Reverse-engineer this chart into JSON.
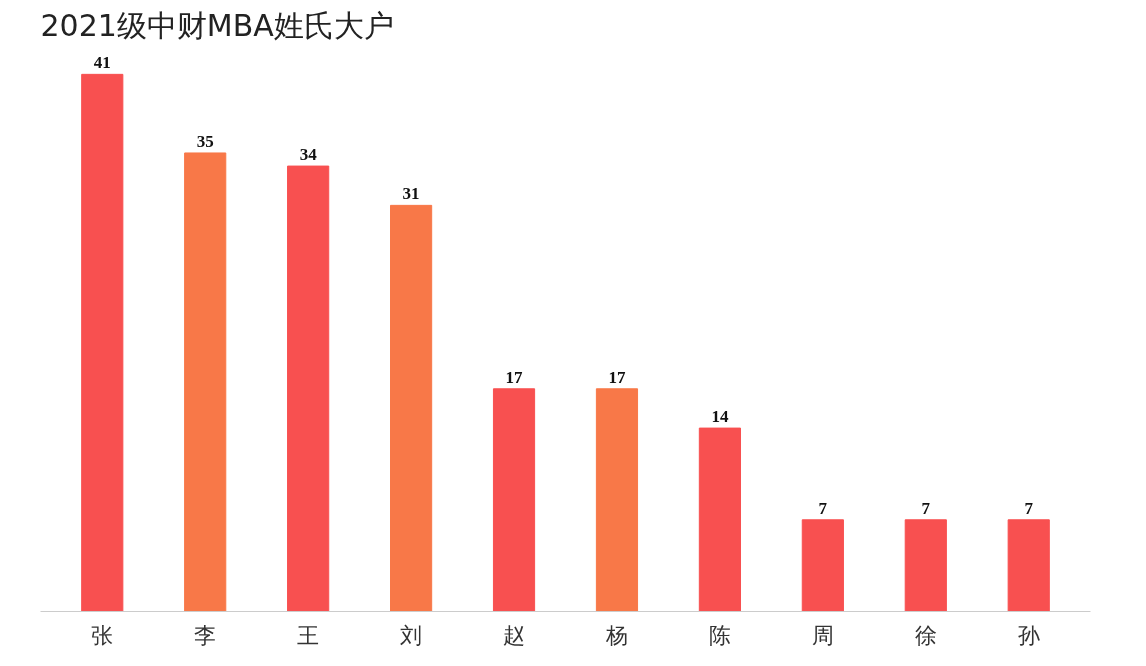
{
  "chart_data": {
    "type": "bar",
    "title": "2021级中财MBA姓氏大户",
    "categories": [
      "张",
      "李",
      "王",
      "刘",
      "赵",
      "杨",
      "陈",
      "周",
      "徐",
      "孙"
    ],
    "values": [
      41,
      35,
      34,
      31,
      17,
      17,
      14,
      7,
      7,
      7
    ],
    "colors": [
      "#f85050",
      "#f87848",
      "#f85050",
      "#f87848",
      "#f85050",
      "#f87848",
      "#f85050",
      "#f85050",
      "#f85050",
      "#f85050"
    ],
    "data_labels": true,
    "tick_labels": "x",
    "grid": false
  }
}
